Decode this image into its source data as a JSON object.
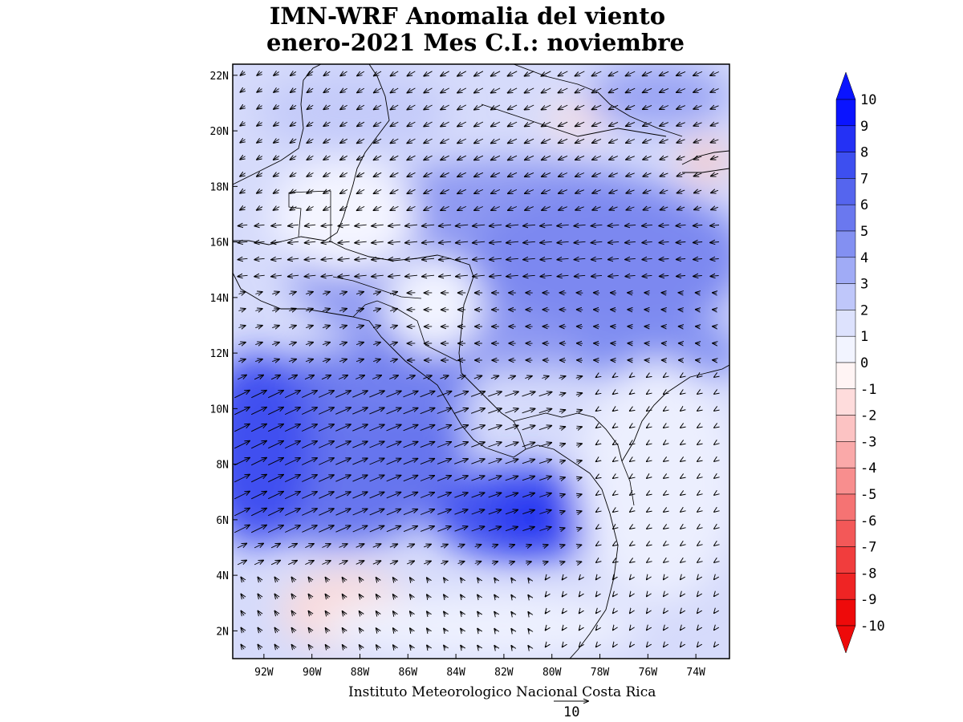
{
  "title": {
    "line1": "IMN-WRF Anomalia del viento",
    "line2": "enero-2021 Mes C.I.: noviembre"
  },
  "credit": "Instituto Meteorologico Nacional Costa Rica",
  "reference_vector": {
    "label": "10",
    "magnitude": 10
  },
  "map_extent": {
    "lon_min": -93.3,
    "lon_max": -72.6,
    "lat_min": 1.0,
    "lat_max": 22.4
  },
  "axes": {
    "x_ticks": [
      "92W",
      "90W",
      "88W",
      "86W",
      "84W",
      "82W",
      "80W",
      "78W",
      "76W",
      "74W"
    ],
    "x_tick_values": [
      -92,
      -90,
      -88,
      -86,
      -84,
      -82,
      -80,
      -78,
      -76,
      -74
    ],
    "y_ticks": [
      "22N",
      "20N",
      "18N",
      "16N",
      "14N",
      "12N",
      "10N",
      "8N",
      "6N",
      "4N",
      "2N"
    ],
    "y_tick_values": [
      22,
      20,
      18,
      16,
      14,
      12,
      10,
      8,
      6,
      4,
      2
    ]
  },
  "colorbar": {
    "labels": [
      "10",
      "9",
      "8",
      "7",
      "6",
      "5",
      "4",
      "3",
      "2",
      "1",
      "0",
      "-1",
      "-2",
      "-3",
      "-4",
      "-5",
      "-6",
      "-7",
      "-8",
      "-9",
      "-10"
    ],
    "colors": [
      "#0a14ff",
      "#2431f5",
      "#3d4ff0",
      "#5565ee",
      "#6a78ef",
      "#8390f2",
      "#a0abf6",
      "#bfc7fa",
      "#dde2fd",
      "#f2f4ff",
      "#fff4f4",
      "#fedcdc",
      "#fcc3c3",
      "#faa9a9",
      "#f88e8e",
      "#f57373",
      "#f35858",
      "#f13d3d",
      "#ef2424",
      "#ee0a0a"
    ],
    "top_arrow_color": "#0a14ff",
    "bottom_arrow_color": "#ee0a0a"
  }
}
